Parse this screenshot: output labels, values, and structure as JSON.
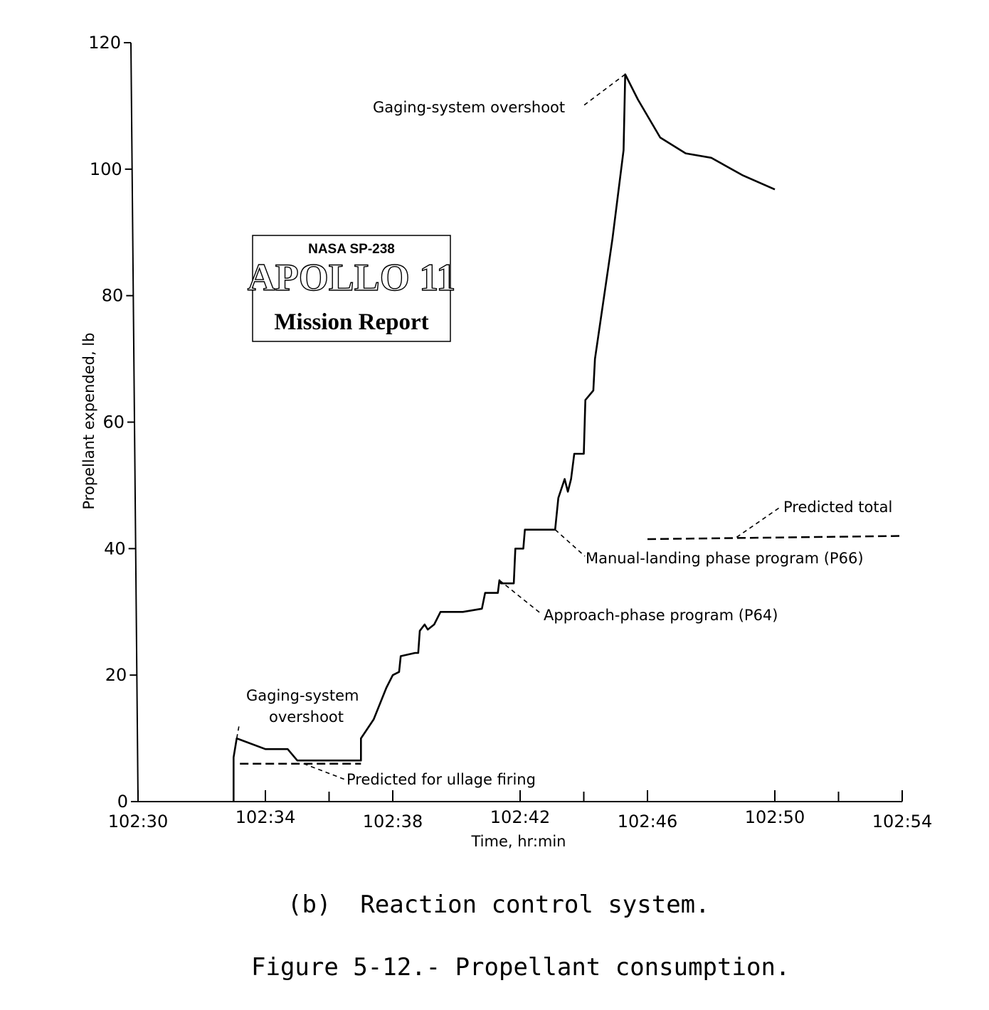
{
  "chart_data": {
    "type": "line",
    "xlabel": "Time, hr:min",
    "ylabel": "Propellant expended, lb",
    "x_ticks": [
      "102:30",
      "102:34",
      "102:38",
      "102:42",
      "102:46",
      "102:50",
      "102:54"
    ],
    "y_ticks": [
      "0",
      "20",
      "40",
      "60",
      "80",
      "100",
      "120"
    ],
    "xlim_minutes": [
      0,
      24
    ],
    "ylim": [
      0,
      120
    ],
    "grid": false,
    "series": [
      {
        "style": "solid",
        "points": [
          [
            3.0,
            0
          ],
          [
            3.0,
            7
          ],
          [
            3.1,
            10
          ],
          [
            4.0,
            8.3
          ],
          [
            4.7,
            8.3
          ],
          [
            5.0,
            6.5
          ],
          [
            7.0,
            6.5
          ],
          [
            7.0,
            10
          ],
          [
            7.4,
            13
          ],
          [
            7.8,
            18
          ],
          [
            8.0,
            20
          ],
          [
            8.2,
            20.5
          ],
          [
            8.25,
            23
          ],
          [
            8.7,
            23.5
          ],
          [
            8.8,
            23.5
          ],
          [
            8.85,
            27
          ],
          [
            9.0,
            28
          ],
          [
            9.1,
            27.2
          ],
          [
            9.3,
            28
          ],
          [
            9.5,
            30
          ],
          [
            10.2,
            30
          ],
          [
            10.8,
            30.5
          ],
          [
            10.9,
            33
          ],
          [
            11.3,
            33
          ],
          [
            11.35,
            35
          ],
          [
            11.4,
            34.5
          ],
          [
            11.8,
            34.5
          ],
          [
            11.85,
            40
          ],
          [
            12.1,
            40
          ],
          [
            12.15,
            43
          ],
          [
            13.1,
            43
          ],
          [
            13.2,
            48
          ],
          [
            13.4,
            51
          ],
          [
            13.5,
            49
          ],
          [
            13.6,
            51
          ],
          [
            13.7,
            55
          ],
          [
            14.0,
            55
          ],
          [
            14.05,
            63.5
          ],
          [
            14.3,
            65
          ],
          [
            14.35,
            70
          ],
          [
            14.9,
            89
          ],
          [
            15.25,
            103
          ],
          [
            15.3,
            115
          ],
          [
            15.7,
            111
          ],
          [
            16.4,
            105
          ],
          [
            17.2,
            102.5
          ],
          [
            18.0,
            101.8
          ],
          [
            19.0,
            99
          ],
          [
            20.0,
            96.8
          ]
        ]
      },
      {
        "name": "Predicted for ullage firing",
        "style": "dashed",
        "points": [
          [
            3.2,
            6
          ],
          [
            7.0,
            6
          ]
        ]
      },
      {
        "name": "Predicted total",
        "style": "dashed",
        "points": [
          [
            16.0,
            41.5
          ],
          [
            24.0,
            42
          ]
        ]
      }
    ],
    "annotations": [
      {
        "text": "Gaging-system overshoot",
        "x": 15.3,
        "y": 115
      },
      {
        "text": "Manual-landing phase program (P66)",
        "x": 13.1,
        "y": 43
      },
      {
        "text": "Approach-phase program (P64)",
        "x": 11.35,
        "y": 35
      },
      {
        "text": "Gaging-system overshoot",
        "x": 3.1,
        "y": 10
      },
      {
        "text": "Predicted for ullage firing",
        "x": 5.2,
        "y": 6
      },
      {
        "text": "Predicted total",
        "x": 18.8,
        "y": 41.8
      }
    ]
  },
  "captions": {
    "sub": "(b)  Reaction control system.",
    "figure": "Figure 5-12.- Propellant consumption."
  },
  "stamp": {
    "top": "NASA SP-238",
    "big": "APOLLO 11",
    "bottom": "Mission Report"
  }
}
